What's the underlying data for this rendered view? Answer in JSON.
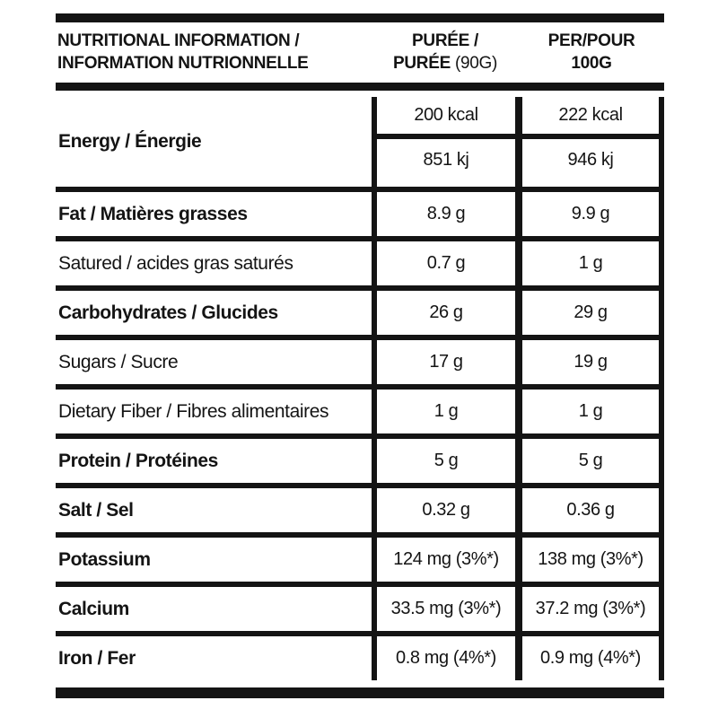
{
  "table": {
    "colors": {
      "ink": "#141414",
      "background": "#ffffff"
    },
    "header": {
      "nutritional_line1": "NUTRITIONAL INFORMATION /",
      "nutritional_line2": "INFORMATION NUTRIONNELLE",
      "puree_line1": "PURÉE /",
      "puree_line2_bold": "PURÉE",
      "puree_line2_light": "(90G)",
      "per100_line1": "PER/POUR",
      "per100_line2": "100G"
    },
    "energy_row": {
      "label": "Energy / Énergie",
      "bold": true,
      "puree_kcal": "200 kcal",
      "puree_kj": "851 kj",
      "per100_kcal": "222 kcal",
      "per100_kj": "946 kj"
    },
    "rows": [
      {
        "label": "Fat / Matières grasses",
        "bold": true,
        "puree": "8.9 g",
        "per100": "9.9 g"
      },
      {
        "label": "Satured / acides gras saturés",
        "bold": false,
        "puree": "0.7 g",
        "per100": "1 g"
      },
      {
        "label": "Carbohydrates / Glucides",
        "bold": true,
        "puree": "26 g",
        "per100": "29 g"
      },
      {
        "label": "Sugars / Sucre",
        "bold": false,
        "puree": "17 g",
        "per100": "19 g"
      },
      {
        "label": "Dietary Fiber / Fibres alimentaires",
        "bold": false,
        "puree": "1 g",
        "per100": "1 g"
      },
      {
        "label": "Protein / Protéines",
        "bold": true,
        "puree": "5 g",
        "per100": "5 g"
      },
      {
        "label": "Salt / Sel",
        "bold": true,
        "puree": "0.32 g",
        "per100": "0.36 g"
      },
      {
        "label": "Potassium",
        "bold": true,
        "puree": "124 mg (3%*)",
        "per100": "138 mg (3%*)"
      },
      {
        "label": "Calcium",
        "bold": true,
        "puree": "33.5 mg (3%*)",
        "per100": "37.2 mg (3%*)"
      },
      {
        "label": "Iron / Fer",
        "bold": true,
        "puree": "0.8 mg (4%*)",
        "per100": "0.9 mg (4%*)"
      }
    ]
  }
}
